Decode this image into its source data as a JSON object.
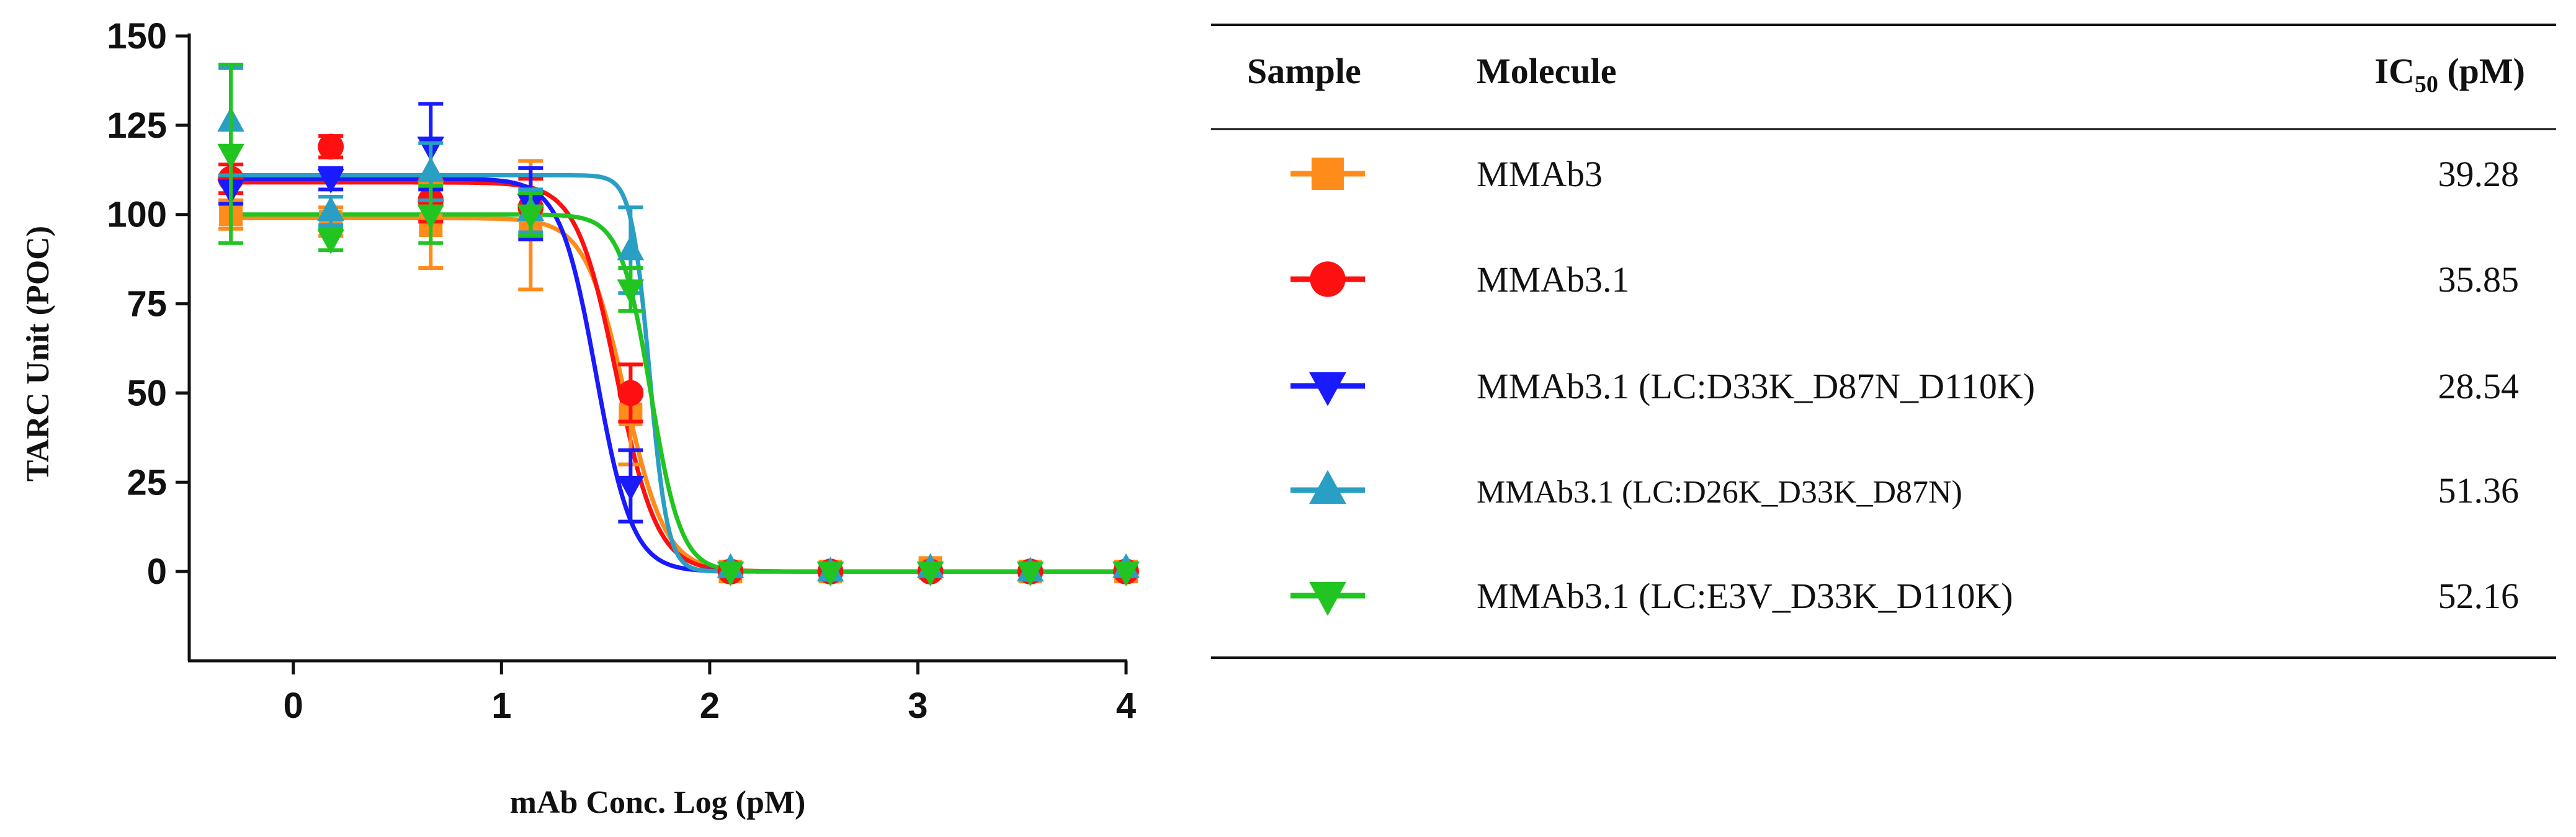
{
  "chart_data": {
    "type": "line",
    "xlabel": "mAb Conc. Log (pM)",
    "ylabel": "TARC Unit (POC)",
    "xlim": [
      -0.5,
      4
    ],
    "ylim": [
      -25,
      150
    ],
    "xticks": [
      0,
      1,
      2,
      3,
      4
    ],
    "yticks": [
      0,
      25,
      50,
      75,
      100,
      125,
      150
    ],
    "x": [
      -0.3,
      0.18,
      0.66,
      1.14,
      1.62,
      2.1,
      2.58,
      3.06,
      3.54,
      4.0
    ],
    "series": [
      {
        "name": "MMAb3",
        "color": "#ff8c1a",
        "marker": "square",
        "top": 99,
        "bottom": 0,
        "log_ic50": 1.594,
        "hill": -4.5,
        "values": [
          100,
          98,
          97,
          97,
          44,
          0,
          0,
          1,
          0,
          0
        ],
        "errors": [
          4,
          4,
          12,
          18,
          14,
          2,
          2,
          1,
          1,
          1
        ]
      },
      {
        "name": "MMAb3.1",
        "color": "#ff1010",
        "marker": "circle",
        "top": 109,
        "bottom": 0,
        "log_ic50": 1.554,
        "hill": -4.5,
        "values": [
          110,
          119,
          104,
          102,
          50,
          0,
          0,
          0,
          0,
          0
        ],
        "errors": [
          4,
          3,
          6,
          8,
          8,
          1,
          1,
          1,
          1,
          1
        ]
      },
      {
        "name": "MMAb3.1 (LC:D33K_D87N_D110K)",
        "color": "#1a1aff",
        "marker": "triangle-down",
        "top": 110,
        "bottom": 0,
        "log_ic50": 1.455,
        "hill": -5,
        "values": [
          107,
          110,
          119,
          103,
          24,
          0,
          0,
          0,
          0,
          0
        ],
        "errors": [
          4,
          3,
          12,
          10,
          10,
          1,
          1,
          1,
          1,
          1
        ]
      },
      {
        "name": "MMAb3.1 (LC:D26K_D33K_D87N)",
        "color": "#2a9fc4",
        "marker": "triangle-up",
        "top": 111,
        "bottom": 0,
        "log_ic50": 1.711,
        "hill": -10,
        "values": [
          126,
          101,
          112,
          101,
          90,
          1,
          0,
          1,
          0,
          1
        ],
        "errors": [
          15,
          4,
          8,
          6,
          12,
          1,
          1,
          1,
          1,
          1
        ]
      },
      {
        "name": "MMAb3.1 (LC:E3V_D33K_D110K)",
        "color": "#22c422",
        "marker": "triangle-down",
        "top": 100,
        "bottom": 0,
        "log_ic50": 1.717,
        "hill": -6,
        "values": [
          117,
          93,
          100,
          100,
          79,
          0,
          0,
          0,
          0,
          0
        ],
        "errors": [
          25,
          3,
          8,
          6,
          6,
          1,
          1,
          1,
          1,
          1
        ]
      }
    ]
  },
  "table": {
    "headers": {
      "sample": "Sample",
      "molecule": "Molecule",
      "ic50_main": "IC",
      "ic50_sub": "50",
      "ic50_unit": " (pM)"
    },
    "rows": [
      {
        "molecule": "MMAb3",
        "ic50": "39.28"
      },
      {
        "molecule": "MMAb3.1",
        "ic50": "35.85"
      },
      {
        "molecule": "MMAb3.1 (LC:D33K_D87N_D110K)",
        "ic50": "28.54"
      },
      {
        "molecule": "MMAb3.1 (LC:D26K_D33K_D87N)",
        "ic50": "51.36"
      },
      {
        "molecule": "MMAb3.1 (LC:E3V_D33K_D110K)",
        "ic50": "52.16"
      }
    ]
  }
}
